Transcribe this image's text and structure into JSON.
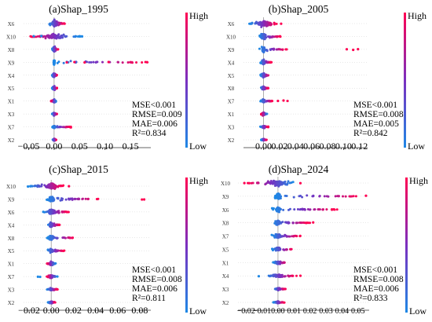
{
  "colorbar": {
    "high": "High",
    "low": "Low",
    "low_color": "#1e88e5",
    "high_color": "#ff0052",
    "mid_color": "#7b2fbf"
  },
  "chart_data": [
    {
      "type": "scatter",
      "title": "(a)Shap_1995",
      "features": [
        "X6",
        "X10",
        "X8",
        "X9",
        "X4",
        "X5",
        "X1",
        "X3",
        "X7",
        "X2"
      ],
      "xlim": [
        -0.06,
        0.19
      ],
      "xticks": [
        -0.05,
        0.0,
        0.05,
        0.1,
        0.15
      ],
      "xtick_labels": [
        "−0.05",
        "0.00",
        "0.05",
        "0.10",
        "0.15"
      ],
      "metrics": [
        "MSE<0.001",
        "RMSE=0.009",
        "MAE=0.006",
        "R²=0.834"
      ],
      "ranges": [
        [
          -0.012,
          0.022
        ],
        [
          -0.05,
          0.055
        ],
        [
          -0.004,
          0.008
        ],
        [
          -0.003,
          0.183
        ],
        [
          -0.004,
          0.006
        ],
        [
          -0.004,
          0.006
        ],
        [
          -0.006,
          0.004
        ],
        [
          -0.004,
          0.006
        ],
        [
          -0.004,
          0.033
        ],
        [
          -0.003,
          0.004
        ]
      ],
      "high_positive": [
        true,
        false,
        true,
        true,
        true,
        true,
        false,
        true,
        true,
        true
      ],
      "tails": [
        [],
        [
          [
            -0.04,
            0
          ],
          [
            -0.025,
            0
          ],
          [
            0.055,
            0
          ]
        ],
        [],
        [
          [
            0.025,
            1
          ],
          [
            0.04,
            1
          ],
          [
            0.06,
            1
          ],
          [
            0.107,
            1
          ],
          [
            0.183,
            1
          ]
        ],
        [],
        [],
        [],
        [],
        [
          [
            0.033,
            1
          ]
        ],
        []
      ]
    },
    {
      "type": "scatter",
      "title": "(b)Shap_2005",
      "features": [
        "X6",
        "X10",
        "X9",
        "X4",
        "X5",
        "X8",
        "X7",
        "X1",
        "X3",
        "X2"
      ],
      "xlim": [
        -0.025,
        0.13
      ],
      "xticks": [
        0.0,
        0.02,
        0.04,
        0.06,
        0.08,
        0.1,
        0.12
      ],
      "xtick_labels": [
        "0.00",
        "0.02",
        "0.04",
        "0.06",
        "0.08",
        "0.10",
        "0.12"
      ],
      "metrics": [
        "MSE<0.001",
        "RMSE=0.008",
        "MAE=0.005",
        "R²=0.842"
      ],
      "ranges": [
        [
          -0.018,
          0.018
        ],
        [
          -0.006,
          0.022
        ],
        [
          -0.005,
          0.03
        ],
        [
          -0.004,
          0.01
        ],
        [
          -0.004,
          0.008
        ],
        [
          -0.004,
          0.006
        ],
        [
          -0.004,
          0.012
        ],
        [
          -0.003,
          0.005
        ],
        [
          -0.004,
          0.006
        ],
        [
          -0.003,
          0.004
        ]
      ],
      "high_positive": [
        true,
        true,
        true,
        true,
        true,
        true,
        true,
        false,
        true,
        true
      ],
      "tails": [
        [
          [
            0.022,
            1
          ]
        ],
        [],
        [
          [
            0.104,
            1
          ],
          [
            0.112,
            1
          ],
          [
            0.118,
            1
          ]
        ],
        [],
        [],
        [],
        [
          [
            0.018,
            1
          ],
          [
            0.025,
            1
          ],
          [
            0.03,
            1
          ]
        ],
        [],
        [],
        []
      ]
    },
    {
      "type": "scatter",
      "title": "(c)Shap_2015",
      "features": [
        "X10",
        "X9",
        "X6",
        "X4",
        "X8",
        "X5",
        "X1",
        "X7",
        "X3",
        "X2"
      ],
      "xlim": [
        -0.025,
        0.09
      ],
      "xticks": [
        -0.02,
        0.0,
        0.02,
        0.04,
        0.06,
        0.08
      ],
      "xtick_labels": [
        "−0.02",
        "0.00",
        "0.02",
        "0.04",
        "0.06",
        "0.08"
      ],
      "metrics": [
        "MSE<0.001",
        "RMSE=0.008",
        "MAE=0.006",
        "R²=0.811"
      ],
      "ranges": [
        [
          -0.02,
          0.012
        ],
        [
          -0.006,
          0.045
        ],
        [
          -0.008,
          0.016
        ],
        [
          -0.004,
          0.008
        ],
        [
          -0.004,
          0.022
        ],
        [
          -0.004,
          0.012
        ],
        [
          -0.004,
          0.004
        ],
        [
          -0.004,
          0.006
        ],
        [
          -0.004,
          0.006
        ],
        [
          -0.003,
          0.004
        ]
      ],
      "high_positive": [
        true,
        true,
        true,
        true,
        true,
        true,
        false,
        false,
        true,
        true
      ],
      "tails": [
        [
          [
            -0.021,
            0
          ],
          [
            0.016,
            1
          ]
        ],
        [
          [
            0.082,
            1
          ],
          [
            0.084,
            1
          ]
        ],
        [],
        [],
        [],
        [],
        [],
        [
          [
            -0.012,
            0
          ],
          [
            -0.01,
            0
          ]
        ],
        [],
        []
      ]
    },
    {
      "type": "scatter",
      "title": "(d)Shap_2024",
      "features": [
        "X10",
        "X9",
        "X6",
        "X8",
        "X7",
        "X5",
        "X1",
        "X4",
        "X3",
        "X2"
      ],
      "xlim": [
        -0.025,
        0.057
      ],
      "xticks": [
        -0.02,
        -0.01,
        0.0,
        0.01,
        0.02,
        0.03,
        0.04,
        0.05
      ],
      "xtick_labels": [
        "−0.02",
        "−0.01",
        "0.00",
        "0.01",
        "0.02",
        "0.03",
        "0.04",
        "0.05"
      ],
      "metrics": [
        "MSE<0.001",
        "RMSE=0.008",
        "MAE=0.006",
        "R²=0.833"
      ],
      "ranges": [
        [
          -0.02,
          0.012
        ],
        [
          -0.004,
          0.055
        ],
        [
          -0.004,
          0.038
        ],
        [
          -0.004,
          0.02
        ],
        [
          -0.004,
          0.014
        ],
        [
          -0.004,
          0.01
        ],
        [
          -0.003,
          0.006
        ],
        [
          -0.008,
          0.012
        ],
        [
          -0.003,
          0.005
        ],
        [
          -0.003,
          0.004
        ]
      ],
      "high_positive": [
        false,
        true,
        true,
        true,
        true,
        true,
        true,
        true,
        true,
        true
      ],
      "tails": [
        [
          [
            -0.021,
            1
          ],
          [
            -0.018,
            1
          ],
          [
            0.014,
            1
          ]
        ],
        [
          [
            0.055,
            1
          ]
        ],
        [],
        [
          [
            0.022,
            1
          ]
        ],
        [],
        [],
        [],
        [
          [
            -0.012,
            0
          ],
          [
            0.014,
            1
          ]
        ],
        [],
        []
      ]
    }
  ]
}
